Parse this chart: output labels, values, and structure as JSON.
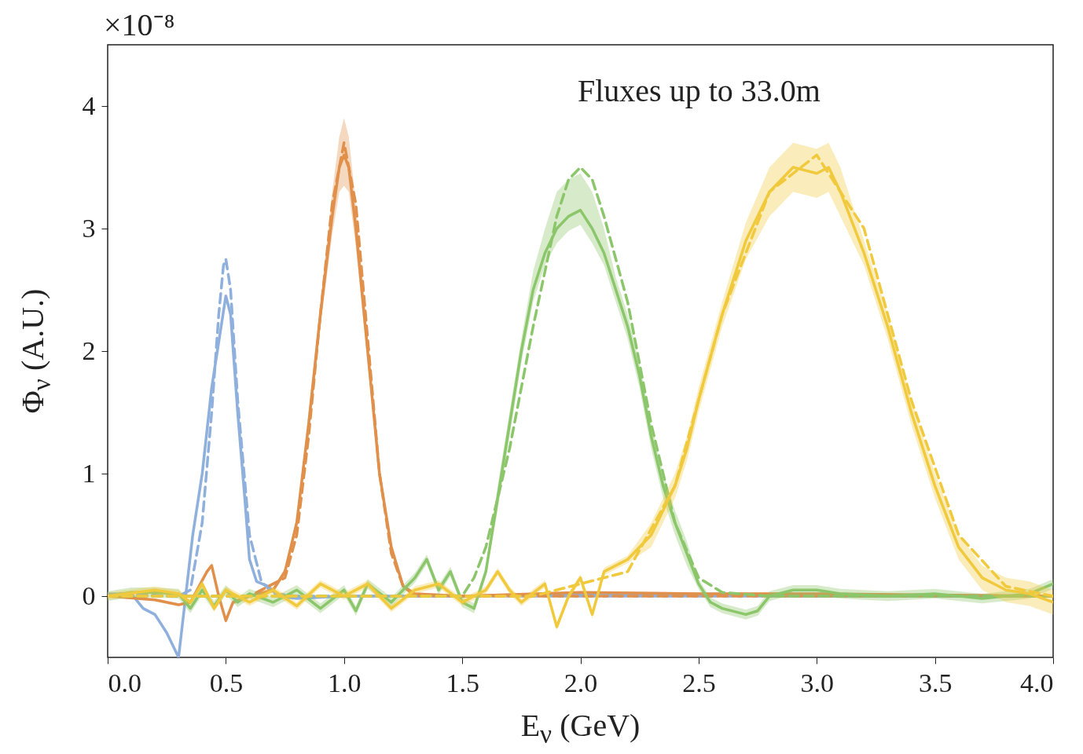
{
  "chart_data": {
    "type": "line",
    "xlabel": "E$_{ν}$ (GeV)",
    "ylabel": "Φ$_{ν}$ (A.U.)",
    "annotations": [
      "×10⁻⁸",
      "Fluxes up to 33.0m"
    ],
    "xlim": [
      0,
      4
    ],
    "xticks": [
      {
        "value": 0,
        "label": "0.0"
      },
      0.5,
      {
        "value": 1,
        "label": "1.0"
      },
      1.5,
      {
        "value": 2,
        "label": "2.0"
      },
      2.5,
      {
        "value": 3,
        "label": "3.0"
      },
      3.5,
      {
        "value": 4,
        "label": "4.0"
      }
    ],
    "ylim": [
      -0.5,
      4.5
    ],
    "yticks": [
      0,
      1,
      2,
      3,
      4
    ],
    "series": [
      {
        "color": "#8fb0dd",
        "line_style": "solid",
        "x": [
          0,
          0.05,
          0.1,
          0.15,
          0.2,
          0.25,
          0.3,
          0.33,
          0.36,
          0.4,
          0.44,
          0.48,
          0.5,
          0.52,
          0.55,
          0.58,
          0.6,
          0.63,
          0.68,
          0.72,
          0.8,
          1.0,
          1.5,
          2.0,
          2.5,
          3.0,
          3.5,
          4.0
        ],
        "values": [
          0,
          0.02,
          0.02,
          -0.1,
          -0.15,
          -0.3,
          -0.5,
          0,
          0.5,
          1.0,
          1.7,
          2.2,
          2.45,
          2.3,
          1.5,
          0.8,
          0.3,
          0.12,
          0.08,
          0,
          -0.02,
          0,
          0,
          0.02,
          0.01,
          0,
          0,
          0
        ]
      },
      {
        "color": "#8fb0dd",
        "line_style": "dashed",
        "x": [
          0,
          0.3,
          0.35,
          0.4,
          0.44,
          0.47,
          0.49,
          0.5,
          0.52,
          0.55,
          0.6,
          0.65,
          0.7,
          0.8,
          4.0
        ],
        "values": [
          0.02,
          0,
          0.05,
          0.6,
          1.5,
          2.3,
          2.7,
          2.75,
          2.5,
          1.6,
          0.5,
          0.12,
          0.02,
          0,
          0
        ]
      },
      {
        "color": "#e0904a",
        "line_style": "solid",
        "x": [
          0,
          0.2,
          0.3,
          0.35,
          0.42,
          0.44,
          0.47,
          0.5,
          0.53,
          0.6,
          0.7,
          0.75,
          0.8,
          0.85,
          0.9,
          0.95,
          0.98,
          1.0,
          1.02,
          1.05,
          1.1,
          1.15,
          1.2,
          1.25,
          1.3,
          1.5,
          2.0,
          2.5,
          3.0,
          3.5,
          4.0
        ],
        "values": [
          0,
          -0.03,
          -0.07,
          -0.05,
          0.2,
          0.25,
          0,
          -0.2,
          -0.05,
          0,
          0.05,
          0.2,
          0.6,
          1.4,
          2.3,
          3.1,
          3.5,
          3.6,
          3.5,
          3.0,
          2.0,
          1.0,
          0.4,
          0.08,
          0.02,
          0,
          0.03,
          0.02,
          0.02,
          0.01,
          0
        ],
        "lower": [
          0,
          -0.04,
          -0.08,
          -0.06,
          0.18,
          0.23,
          -0.02,
          -0.22,
          -0.07,
          -0.01,
          0.03,
          0.17,
          0.55,
          1.3,
          2.2,
          2.95,
          3.3,
          3.35,
          3.3,
          2.85,
          1.9,
          0.95,
          0.37,
          0.06,
          0.01,
          -0.01,
          0.02,
          0.01,
          0.01,
          0,
          -0.01
        ],
        "upper": [
          0.01,
          -0.02,
          -0.06,
          -0.04,
          0.22,
          0.27,
          0.02,
          -0.18,
          -0.03,
          0.01,
          0.07,
          0.23,
          0.65,
          1.5,
          2.4,
          3.3,
          3.75,
          3.9,
          3.75,
          3.2,
          2.1,
          1.05,
          0.43,
          0.1,
          0.03,
          0.01,
          0.04,
          0.03,
          0.03,
          0.02,
          0.01
        ]
      },
      {
        "color": "#e0904a",
        "line_style": "dashed",
        "x": [
          0,
          0.5,
          0.6,
          0.75,
          0.8,
          0.85,
          0.9,
          0.95,
          1.0,
          1.05,
          1.1,
          1.15,
          1.2,
          1.25,
          1.3,
          2.0,
          4.0
        ],
        "values": [
          0,
          0,
          0,
          0.15,
          0.5,
          1.3,
          2.3,
          3.2,
          3.7,
          3.2,
          2.1,
          1.0,
          0.35,
          0.08,
          0,
          0,
          0
        ]
      },
      {
        "color": "#8cc66b",
        "line_style": "solid",
        "x": [
          0,
          0.1,
          0.2,
          0.3,
          0.35,
          0.4,
          0.45,
          0.5,
          0.55,
          0.6,
          0.7,
          0.8,
          0.9,
          1.0,
          1.05,
          1.1,
          1.2,
          1.3,
          1.35,
          1.4,
          1.45,
          1.5,
          1.55,
          1.6,
          1.65,
          1.7,
          1.75,
          1.8,
          1.85,
          1.9,
          1.95,
          2.0,
          2.05,
          2.1,
          2.15,
          2.2,
          2.25,
          2.3,
          2.35,
          2.4,
          2.45,
          2.5,
          2.55,
          2.6,
          2.7,
          2.75,
          2.8,
          2.9,
          3.0,
          3.1,
          3.3,
          3.5,
          3.7,
          3.9,
          4.0
        ],
        "values": [
          0,
          0.03,
          0.03,
          0.02,
          -0.1,
          0.05,
          -0.08,
          0.05,
          -0.05,
          0.02,
          -0.05,
          0.05,
          -0.1,
          0.05,
          -0.12,
          0.1,
          -0.05,
          0.15,
          0.3,
          0.05,
          0.2,
          -0.05,
          -0.1,
          0.2,
          0.8,
          1.4,
          2.0,
          2.5,
          2.8,
          3.0,
          3.1,
          3.15,
          3.0,
          2.8,
          2.5,
          2.2,
          1.8,
          1.3,
          0.9,
          0.6,
          0.35,
          0.1,
          -0.05,
          -0.1,
          -0.15,
          -0.12,
          0,
          0.05,
          0.05,
          0.02,
          0,
          0.02,
          -0.02,
          0.02,
          0.1
        ],
        "lower": [
          -0.04,
          -0.01,
          -0.01,
          -0.02,
          -0.14,
          0.01,
          -0.12,
          0.01,
          -0.09,
          -0.02,
          -0.09,
          0.01,
          -0.14,
          0.01,
          -0.16,
          0.06,
          -0.09,
          0.11,
          0.26,
          0.01,
          0.16,
          -0.09,
          -0.14,
          0.16,
          0.7,
          1.3,
          1.9,
          2.4,
          2.7,
          2.88,
          2.98,
          3.03,
          2.88,
          2.7,
          2.4,
          2.1,
          1.7,
          1.2,
          0.8,
          0.5,
          0.25,
          0.06,
          -0.09,
          -0.14,
          -0.19,
          -0.16,
          -0.04,
          0.01,
          0.01,
          -0.02,
          -0.04,
          -0.02,
          -0.06,
          -0.02,
          0.06
        ],
        "upper": [
          0.04,
          0.07,
          0.07,
          0.06,
          -0.06,
          0.09,
          -0.04,
          0.09,
          -0.01,
          0.06,
          -0.01,
          0.09,
          -0.06,
          0.09,
          -0.08,
          0.14,
          -0.01,
          0.19,
          0.34,
          0.09,
          0.24,
          -0.01,
          -0.06,
          0.24,
          0.9,
          1.5,
          2.1,
          2.65,
          3.0,
          3.3,
          3.4,
          3.45,
          3.3,
          3.0,
          2.6,
          2.3,
          1.9,
          1.4,
          1.0,
          0.7,
          0.45,
          0.14,
          -0.01,
          -0.06,
          -0.11,
          -0.08,
          0.04,
          0.09,
          0.09,
          0.06,
          0.04,
          0.06,
          0.02,
          0.06,
          0.14
        ]
      },
      {
        "color": "#8cc66b",
        "line_style": "dashed",
        "x": [
          0,
          1.5,
          1.55,
          1.6,
          1.7,
          1.8,
          1.9,
          1.95,
          2.0,
          2.05,
          2.1,
          2.2,
          2.3,
          2.4,
          2.5,
          2.6,
          2.8,
          4.0
        ],
        "values": [
          0,
          0,
          0.15,
          0.4,
          1.2,
          2.2,
          3.1,
          3.4,
          3.5,
          3.4,
          3.1,
          2.4,
          1.4,
          0.6,
          0.15,
          0.03,
          0,
          0
        ]
      },
      {
        "color": "#f0c93c",
        "line_style": "solid",
        "x": [
          0,
          0.2,
          0.3,
          0.35,
          0.4,
          0.45,
          0.5,
          0.6,
          0.7,
          0.8,
          0.9,
          1.0,
          1.1,
          1.2,
          1.3,
          1.4,
          1.5,
          1.6,
          1.65,
          1.7,
          1.75,
          1.85,
          1.9,
          1.95,
          2.0,
          2.05,
          2.1,
          2.2,
          2.3,
          2.4,
          2.45,
          2.5,
          2.6,
          2.7,
          2.8,
          2.9,
          3.0,
          3.05,
          3.1,
          3.2,
          3.3,
          3.4,
          3.5,
          3.6,
          3.7,
          3.8,
          3.9,
          4.0
        ],
        "values": [
          0,
          0.05,
          0.02,
          -0.05,
          0.1,
          -0.1,
          0.05,
          -0.05,
          0.05,
          -0.08,
          0.1,
          0,
          0.1,
          -0.1,
          0.05,
          0.1,
          -0.05,
          0.05,
          0.2,
          0.05,
          -0.05,
          0.1,
          -0.25,
          0,
          0.15,
          -0.15,
          0.2,
          0.3,
          0.5,
          0.9,
          1.2,
          1.6,
          2.3,
          2.9,
          3.3,
          3.5,
          3.45,
          3.5,
          3.3,
          2.8,
          2.2,
          1.5,
          0.9,
          0.4,
          0.15,
          0.05,
          0.02,
          -0.05
        ],
        "lower": [
          -0.03,
          0.02,
          -0.01,
          -0.08,
          0.07,
          -0.13,
          0.02,
          -0.08,
          0.02,
          -0.11,
          0.07,
          -0.03,
          0.07,
          -0.13,
          0.02,
          0.07,
          -0.08,
          0.02,
          0.17,
          0.02,
          -0.08,
          0.07,
          -0.28,
          -0.03,
          0.12,
          -0.18,
          0.17,
          0.27,
          0.4,
          0.8,
          1.1,
          1.5,
          2.2,
          2.75,
          3.1,
          3.3,
          3.25,
          3.3,
          3.1,
          2.7,
          2.1,
          1.4,
          0.8,
          0.3,
          0.05,
          -0.05,
          -0.08,
          -0.15
        ],
        "upper": [
          0.03,
          0.08,
          0.05,
          -0.02,
          0.13,
          -0.07,
          0.08,
          -0.02,
          0.08,
          -0.05,
          0.13,
          0.03,
          0.13,
          -0.07,
          0.08,
          0.13,
          -0.02,
          0.08,
          0.23,
          0.08,
          -0.02,
          0.13,
          -0.22,
          0.03,
          0.18,
          -0.12,
          0.23,
          0.33,
          0.6,
          1.0,
          1.3,
          1.7,
          2.4,
          3.05,
          3.5,
          3.7,
          3.65,
          3.7,
          3.5,
          2.9,
          2.3,
          1.6,
          1.0,
          0.5,
          0.25,
          0.15,
          0.12,
          0.05
        ]
      },
      {
        "color": "#f0c93c",
        "line_style": "dashed",
        "x": [
          0,
          1.8,
          2.2,
          2.4,
          2.6,
          2.8,
          3.0,
          3.2,
          3.4,
          3.6,
          3.8,
          4.0
        ],
        "values": [
          0,
          0,
          0.2,
          0.9,
          2.3,
          3.3,
          3.6,
          3.0,
          1.6,
          0.5,
          0.08,
          0
        ]
      }
    ]
  }
}
